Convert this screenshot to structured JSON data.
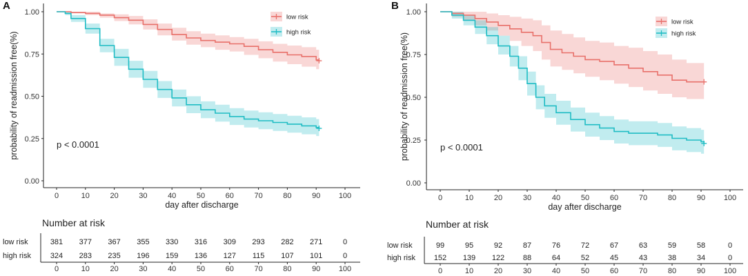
{
  "chart_data": [
    {
      "type": "line",
      "panel_label": "A",
      "xlabel": "day after discharge",
      "ylabel": "probability of readmission free(%)",
      "xlim": [
        0,
        100
      ],
      "ylim": [
        0,
        1
      ],
      "x_ticks": [
        "0",
        "10",
        "20",
        "30",
        "40",
        "50",
        "60",
        "70",
        "80",
        "90",
        "100"
      ],
      "y_ticks": [
        "0.00",
        "0.25",
        "0.50",
        "0.75",
        "1.00"
      ],
      "pvalue_text": "p < 0.0001",
      "legend": {
        "position": "top-right",
        "entries": [
          "low risk",
          "high risk"
        ]
      },
      "series": [
        {
          "name": "low risk",
          "color": "#e8706a",
          "x": [
            0,
            3,
            5,
            10,
            15,
            20,
            25,
            30,
            35,
            40,
            45,
            50,
            55,
            60,
            65,
            70,
            75,
            80,
            85,
            90,
            91
          ],
          "y": [
            1.0,
            1.0,
            0.995,
            0.99,
            0.98,
            0.965,
            0.95,
            0.925,
            0.895,
            0.865,
            0.845,
            0.83,
            0.82,
            0.81,
            0.795,
            0.775,
            0.76,
            0.745,
            0.735,
            0.715,
            0.71
          ],
          "lower": [
            1.0,
            1.0,
            0.99,
            0.98,
            0.965,
            0.945,
            0.925,
            0.895,
            0.86,
            0.83,
            0.805,
            0.79,
            0.775,
            0.765,
            0.745,
            0.725,
            0.705,
            0.69,
            0.675,
            0.66,
            0.655
          ],
          "upper": [
            1.0,
            1.0,
            1.0,
            1.0,
            0.99,
            0.985,
            0.975,
            0.955,
            0.93,
            0.905,
            0.885,
            0.87,
            0.86,
            0.85,
            0.84,
            0.825,
            0.81,
            0.8,
            0.79,
            0.775,
            0.77
          ]
        },
        {
          "name": "high risk",
          "color": "#1fbcc4",
          "x": [
            0,
            3,
            5,
            10,
            15,
            20,
            25,
            30,
            35,
            40,
            45,
            50,
            55,
            60,
            65,
            70,
            75,
            80,
            85,
            90,
            91
          ],
          "y": [
            1.0,
            0.99,
            0.96,
            0.9,
            0.8,
            0.73,
            0.66,
            0.6,
            0.54,
            0.49,
            0.45,
            0.42,
            0.4,
            0.38,
            0.365,
            0.355,
            0.345,
            0.335,
            0.325,
            0.315,
            0.31
          ],
          "lower": [
            1.0,
            0.98,
            0.94,
            0.87,
            0.76,
            0.68,
            0.61,
            0.55,
            0.49,
            0.44,
            0.4,
            0.37,
            0.35,
            0.33,
            0.315,
            0.305,
            0.295,
            0.285,
            0.275,
            0.265,
            0.26
          ],
          "upper": [
            1.0,
            1.0,
            0.98,
            0.93,
            0.84,
            0.78,
            0.71,
            0.65,
            0.59,
            0.54,
            0.5,
            0.47,
            0.45,
            0.43,
            0.415,
            0.405,
            0.395,
            0.385,
            0.375,
            0.365,
            0.36
          ]
        }
      ],
      "risk_table": {
        "title": "Number at risk",
        "x_ticks": [
          "0",
          "10",
          "20",
          "30",
          "40",
          "50",
          "60",
          "70",
          "80",
          "90",
          "100"
        ],
        "rows": [
          {
            "group": "low risk",
            "values": [
              "381",
              "377",
              "367",
              "355",
              "330",
              "316",
              "309",
              "293",
              "282",
              "271",
              "0"
            ]
          },
          {
            "group": "high risk",
            "values": [
              "324",
              "283",
              "235",
              "196",
              "159",
              "136",
              "127",
              "115",
              "107",
              "101",
              "0"
            ]
          }
        ]
      }
    },
    {
      "type": "line",
      "panel_label": "B",
      "xlabel": "day after discharge",
      "ylabel": "probability of readmission free(%)",
      "xlim": [
        0,
        100
      ],
      "ylim": [
        0,
        1
      ],
      "x_ticks": [
        "0",
        "10",
        "20",
        "30",
        "40",
        "50",
        "60",
        "70",
        "80",
        "90",
        "100"
      ],
      "y_ticks": [
        "0.00",
        "0.25",
        "0.50",
        "0.75",
        "1.00"
      ],
      "pvalue_text": "p < 0.0001",
      "legend": {
        "position": "top-right",
        "entries": [
          "low risk",
          "high risk"
        ]
      },
      "series": [
        {
          "name": "low risk",
          "color": "#e8706a",
          "x": [
            0,
            4,
            8,
            12,
            16,
            20,
            24,
            28,
            32,
            35,
            38,
            42,
            46,
            50,
            55,
            60,
            65,
            70,
            75,
            80,
            85,
            90,
            91
          ],
          "y": [
            1.0,
            0.99,
            0.98,
            0.96,
            0.94,
            0.92,
            0.9,
            0.88,
            0.86,
            0.82,
            0.78,
            0.76,
            0.74,
            0.72,
            0.71,
            0.69,
            0.67,
            0.65,
            0.63,
            0.6,
            0.59,
            0.59,
            0.59
          ],
          "lower": [
            1.0,
            0.97,
            0.95,
            0.92,
            0.89,
            0.86,
            0.83,
            0.8,
            0.77,
            0.72,
            0.68,
            0.66,
            0.64,
            0.62,
            0.6,
            0.58,
            0.56,
            0.54,
            0.52,
            0.5,
            0.49,
            0.49,
            0.49
          ],
          "upper": [
            1.0,
            1.0,
            1.0,
            1.0,
            0.99,
            0.98,
            0.97,
            0.96,
            0.95,
            0.92,
            0.89,
            0.87,
            0.85,
            0.83,
            0.82,
            0.8,
            0.79,
            0.77,
            0.75,
            0.72,
            0.7,
            0.7,
            0.7
          ]
        },
        {
          "name": "high risk",
          "color": "#1fbcc4",
          "x": [
            0,
            4,
            8,
            12,
            16,
            20,
            24,
            27,
            30,
            33,
            36,
            40,
            45,
            50,
            55,
            60,
            65,
            70,
            75,
            80,
            85,
            90,
            91
          ],
          "y": [
            1.0,
            0.98,
            0.95,
            0.91,
            0.86,
            0.8,
            0.74,
            0.67,
            0.58,
            0.5,
            0.45,
            0.41,
            0.37,
            0.34,
            0.32,
            0.3,
            0.29,
            0.29,
            0.28,
            0.26,
            0.25,
            0.24,
            0.23
          ],
          "lower": [
            1.0,
            0.96,
            0.92,
            0.87,
            0.81,
            0.75,
            0.68,
            0.6,
            0.51,
            0.43,
            0.38,
            0.34,
            0.3,
            0.27,
            0.25,
            0.23,
            0.22,
            0.22,
            0.21,
            0.19,
            0.18,
            0.17,
            0.17
          ],
          "upper": [
            1.0,
            1.0,
            0.98,
            0.95,
            0.91,
            0.86,
            0.8,
            0.74,
            0.65,
            0.57,
            0.52,
            0.48,
            0.44,
            0.41,
            0.39,
            0.37,
            0.36,
            0.36,
            0.35,
            0.33,
            0.32,
            0.31,
            0.3
          ]
        }
      ],
      "risk_table": {
        "title": "Number at risk",
        "x_ticks": [
          "0",
          "10",
          "20",
          "30",
          "40",
          "50",
          "60",
          "70",
          "80",
          "90",
          "100"
        ],
        "rows": [
          {
            "group": "low risk",
            "values": [
              "99",
              "95",
              "92",
              "87",
              "76",
              "72",
              "67",
              "63",
              "59",
              "58",
              "0"
            ]
          },
          {
            "group": "high risk",
            "values": [
              "152",
              "139",
              "122",
              "88",
              "64",
              "52",
              "45",
              "43",
              "38",
              "34",
              "0"
            ]
          }
        ]
      }
    }
  ]
}
